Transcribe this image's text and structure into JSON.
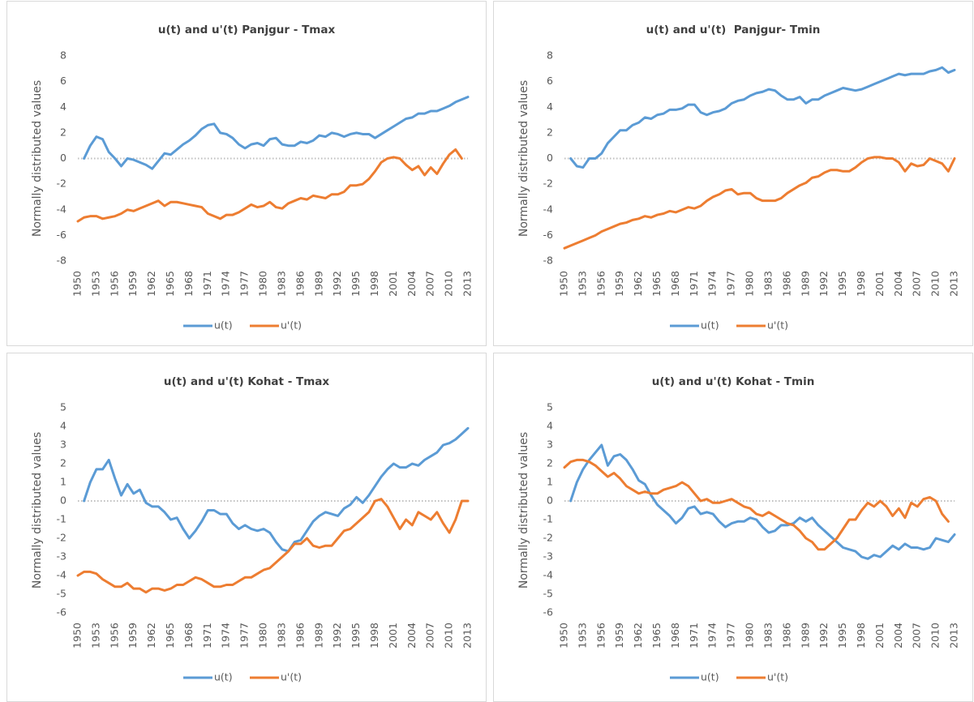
{
  "chart_data": [
    {
      "type": "line",
      "title": "u(t) and u'(t) Panjgur - Tmax",
      "y_label": "Normally distributed values",
      "x": [
        1950,
        1951,
        1952,
        1953,
        1954,
        1955,
        1956,
        1957,
        1958,
        1959,
        1960,
        1961,
        1962,
        1963,
        1964,
        1965,
        1966,
        1967,
        1968,
        1969,
        1970,
        1971,
        1972,
        1973,
        1974,
        1975,
        1976,
        1977,
        1978,
        1979,
        1980,
        1981,
        1982,
        1983,
        1984,
        1985,
        1986,
        1987,
        1988,
        1989,
        1990,
        1991,
        1992,
        1993,
        1994,
        1995,
        1996,
        1997,
        1998,
        1999,
        2000,
        2001,
        2002,
        2003,
        2004,
        2005,
        2006,
        2007,
        2008,
        2009,
        2010,
        2011,
        2012,
        2013
      ],
      "xlim": [
        1950,
        2013
      ],
      "xticks": [
        1950,
        1953,
        1956,
        1959,
        1962,
        1965,
        1968,
        1971,
        1974,
        1977,
        1980,
        1983,
        1986,
        1989,
        1992,
        1995,
        1998,
        2001,
        2004,
        2007,
        2010,
        2013
      ],
      "ylim": [
        -8,
        8
      ],
      "yticks": [
        -8,
        -6,
        -4,
        -2,
        0,
        2,
        4,
        6,
        8
      ],
      "legend": "bottom",
      "series": [
        {
          "name": "u(t)",
          "color": "#5b9bd5",
          "values": [
            null,
            0,
            1.0,
            1.7,
            1.5,
            0.5,
            0.0,
            -0.6,
            0.0,
            -0.1,
            -0.3,
            -0.5,
            -0.8,
            -0.2,
            0.4,
            0.3,
            0.7,
            1.1,
            1.4,
            1.8,
            2.3,
            2.6,
            2.7,
            2.0,
            1.9,
            1.6,
            1.1,
            0.8,
            1.1,
            1.2,
            1.0,
            1.5,
            1.6,
            1.1,
            1.0,
            1.0,
            1.3,
            1.2,
            1.4,
            1.8,
            1.7,
            2.0,
            1.9,
            1.7,
            1.9,
            2.0,
            1.9,
            1.9,
            1.6,
            1.9,
            2.2,
            2.5,
            2.8,
            3.1,
            3.2,
            3.5,
            3.5,
            3.7,
            3.7,
            3.9,
            4.1,
            4.4,
            4.6,
            4.8
          ]
        },
        {
          "name": "u'(t)",
          "color": "#ed7d31",
          "values": [
            -4.9,
            -4.6,
            -4.5,
            -4.5,
            -4.7,
            -4.6,
            -4.5,
            -4.3,
            -4.0,
            -4.1,
            -3.9,
            -3.7,
            -3.5,
            -3.3,
            -3.7,
            -3.4,
            -3.4,
            -3.5,
            -3.6,
            -3.7,
            -3.8,
            -4.3,
            -4.5,
            -4.7,
            -4.4,
            -4.4,
            -4.2,
            -3.9,
            -3.6,
            -3.8,
            -3.7,
            -3.4,
            -3.8,
            -3.9,
            -3.5,
            -3.3,
            -3.1,
            -3.2,
            -2.9,
            -3.0,
            -3.1,
            -2.8,
            -2.8,
            -2.6,
            -2.1,
            -2.1,
            -2.0,
            -1.6,
            -1.0,
            -0.3,
            0.0,
            0.1,
            0.0,
            -0.5,
            -0.9,
            -0.6,
            -1.3,
            -0.7,
            -1.2,
            -0.4,
            0.3,
            0.7,
            0.0,
            null
          ]
        }
      ]
    },
    {
      "type": "line",
      "title": "u(t) and u'(t)  Panjgur- Tmin",
      "y_label": "Normally distributed values",
      "x": [
        1950,
        1951,
        1952,
        1953,
        1954,
        1955,
        1956,
        1957,
        1958,
        1959,
        1960,
        1961,
        1962,
        1963,
        1964,
        1965,
        1966,
        1967,
        1968,
        1969,
        1970,
        1971,
        1972,
        1973,
        1974,
        1975,
        1976,
        1977,
        1978,
        1979,
        1980,
        1981,
        1982,
        1983,
        1984,
        1985,
        1986,
        1987,
        1988,
        1989,
        1990,
        1991,
        1992,
        1993,
        1994,
        1995,
        1996,
        1997,
        1998,
        1999,
        2000,
        2001,
        2002,
        2003,
        2004,
        2005,
        2006,
        2007,
        2008,
        2009,
        2010,
        2011,
        2012,
        2013
      ],
      "xlim": [
        1950,
        2013
      ],
      "xticks": [
        1950,
        1953,
        1956,
        1959,
        1962,
        1965,
        1968,
        1971,
        1974,
        1977,
        1980,
        1983,
        1986,
        1989,
        1992,
        1995,
        1998,
        2001,
        2004,
        2007,
        2010,
        2013
      ],
      "ylim": [
        -8,
        8
      ],
      "yticks": [
        -8,
        -6,
        -4,
        -2,
        0,
        2,
        4,
        6,
        8
      ],
      "legend": "bottom",
      "series": [
        {
          "name": "u(t)",
          "color": "#5b9bd5",
          "values": [
            null,
            0.0,
            -0.6,
            -0.7,
            0.0,
            0.0,
            0.4,
            1.2,
            1.7,
            2.2,
            2.2,
            2.6,
            2.8,
            3.2,
            3.1,
            3.4,
            3.5,
            3.8,
            3.8,
            3.9,
            4.2,
            4.2,
            3.6,
            3.4,
            3.6,
            3.7,
            3.9,
            4.3,
            4.5,
            4.6,
            4.9,
            5.1,
            5.2,
            5.4,
            5.3,
            4.9,
            4.6,
            4.6,
            4.8,
            4.3,
            4.6,
            4.6,
            4.9,
            5.1,
            5.3,
            5.5,
            5.4,
            5.3,
            5.4,
            5.6,
            5.8,
            6.0,
            6.2,
            6.4,
            6.6,
            6.5,
            6.6,
            6.6,
            6.6,
            6.8,
            6.9,
            7.1,
            6.7,
            6.9
          ]
        },
        {
          "name": "u'(t)",
          "color": "#ed7d31",
          "values": [
            -7.0,
            -6.8,
            -6.6,
            -6.4,
            -6.2,
            -6.0,
            -5.7,
            -5.5,
            -5.3,
            -5.1,
            -5.0,
            -4.8,
            -4.7,
            -4.5,
            -4.6,
            -4.4,
            -4.3,
            -4.1,
            -4.2,
            -4.0,
            -3.8,
            -3.9,
            -3.7,
            -3.3,
            -3.0,
            -2.8,
            -2.5,
            -2.4,
            -2.8,
            -2.7,
            -2.7,
            -3.1,
            -3.3,
            -3.3,
            -3.3,
            -3.1,
            -2.7,
            -2.4,
            -2.1,
            -1.9,
            -1.5,
            -1.4,
            -1.1,
            -0.9,
            -0.9,
            -1.0,
            -1.0,
            -0.7,
            -0.3,
            0.0,
            0.1,
            0.1,
            0.0,
            0.0,
            -0.3,
            -1.0,
            -0.4,
            -0.6,
            -0.5,
            0.0,
            -0.2,
            -0.4,
            -1.0,
            0.0
          ]
        }
      ]
    },
    {
      "type": "line",
      "title": "u(t) and u'(t) Kohat - Tmax",
      "y_label": "Normally distributed values",
      "x": [
        1950,
        1951,
        1952,
        1953,
        1954,
        1955,
        1956,
        1957,
        1958,
        1959,
        1960,
        1961,
        1962,
        1963,
        1964,
        1965,
        1966,
        1967,
        1968,
        1969,
        1970,
        1971,
        1972,
        1973,
        1974,
        1975,
        1976,
        1977,
        1978,
        1979,
        1980,
        1981,
        1982,
        1983,
        1984,
        1985,
        1986,
        1987,
        1988,
        1989,
        1990,
        1991,
        1992,
        1993,
        1994,
        1995,
        1996,
        1997,
        1998,
        1999,
        2000,
        2001,
        2002,
        2003,
        2004,
        2005,
        2006,
        2007,
        2008,
        2009,
        2010,
        2011,
        2012,
        2013
      ],
      "xlim": [
        1950,
        2013
      ],
      "xticks": [
        1950,
        1953,
        1956,
        1959,
        1962,
        1965,
        1968,
        1971,
        1974,
        1977,
        1980,
        1983,
        1986,
        1989,
        1992,
        1995,
        1998,
        2001,
        2004,
        2007,
        2010,
        2013
      ],
      "ylim": [
        -6,
        5
      ],
      "yticks": [
        -6,
        -5,
        -4,
        -3,
        -2,
        -1,
        0,
        1,
        2,
        3,
        4,
        5
      ],
      "legend": "bottom",
      "series": [
        {
          "name": "u(t)",
          "color": "#5b9bd5",
          "values": [
            null,
            0.0,
            1.0,
            1.7,
            1.7,
            2.2,
            1.2,
            0.3,
            0.9,
            0.4,
            0.6,
            -0.1,
            -0.3,
            -0.3,
            -0.6,
            -1.0,
            -0.9,
            -1.5,
            -2.0,
            -1.6,
            -1.1,
            -0.5,
            -0.5,
            -0.7,
            -0.7,
            -1.2,
            -1.5,
            -1.3,
            -1.5,
            -1.6,
            -1.5,
            -1.7,
            -2.2,
            -2.6,
            -2.7,
            -2.2,
            -2.1,
            -1.6,
            -1.1,
            -0.8,
            -0.6,
            -0.7,
            -0.8,
            -0.4,
            -0.2,
            0.2,
            -0.1,
            0.3,
            0.8,
            1.3,
            1.7,
            2.0,
            1.8,
            1.8,
            2.0,
            1.9,
            2.2,
            2.4,
            2.6,
            3.0,
            3.1,
            3.3,
            3.6,
            3.9
          ]
        },
        {
          "name": "u'(t)",
          "color": "#ed7d31",
          "values": [
            -4.0,
            -3.8,
            -3.8,
            -3.9,
            -4.2,
            -4.4,
            -4.6,
            -4.6,
            -4.4,
            -4.7,
            -4.7,
            -4.9,
            -4.7,
            -4.7,
            -4.8,
            -4.7,
            -4.5,
            -4.5,
            -4.3,
            -4.1,
            -4.2,
            -4.4,
            -4.6,
            -4.6,
            -4.5,
            -4.5,
            -4.3,
            -4.1,
            -4.1,
            -3.9,
            -3.7,
            -3.6,
            -3.3,
            -3.0,
            -2.7,
            -2.3,
            -2.3,
            -2.0,
            -2.4,
            -2.5,
            -2.4,
            -2.4,
            -2.0,
            -1.6,
            -1.5,
            -1.2,
            -0.9,
            -0.6,
            0.0,
            0.1,
            -0.3,
            -0.9,
            -1.5,
            -1.0,
            -1.3,
            -0.6,
            -0.8,
            -1.0,
            -0.6,
            -1.2,
            -1.7,
            -1.0,
            0.0,
            0.0
          ]
        }
      ]
    },
    {
      "type": "line",
      "title": "u(t) and u'(t) Kohat - Tmin",
      "y_label": "Normally distributed values",
      "x": [
        1950,
        1951,
        1952,
        1953,
        1954,
        1955,
        1956,
        1957,
        1958,
        1959,
        1960,
        1961,
        1962,
        1963,
        1964,
        1965,
        1966,
        1967,
        1968,
        1969,
        1970,
        1971,
        1972,
        1973,
        1974,
        1975,
        1976,
        1977,
        1978,
        1979,
        1980,
        1981,
        1982,
        1983,
        1984,
        1985,
        1986,
        1987,
        1988,
        1989,
        1990,
        1991,
        1992,
        1993,
        1994,
        1995,
        1996,
        1997,
        1998,
        1999,
        2000,
        2001,
        2002,
        2003,
        2004,
        2005,
        2006,
        2007,
        2008,
        2009,
        2010,
        2011,
        2012,
        2013
      ],
      "xlim": [
        1950,
        2013
      ],
      "xticks": [
        1950,
        1953,
        1956,
        1959,
        1962,
        1965,
        1968,
        1971,
        1974,
        1977,
        1980,
        1983,
        1986,
        1989,
        1992,
        1995,
        1998,
        2001,
        2004,
        2007,
        2010,
        2013
      ],
      "ylim": [
        -6,
        5
      ],
      "yticks": [
        -6,
        -5,
        -4,
        -3,
        -2,
        -1,
        0,
        1,
        2,
        3,
        4,
        5
      ],
      "legend": "bottom",
      "series": [
        {
          "name": "u(t)",
          "color": "#5b9bd5",
          "values": [
            null,
            0.0,
            1.0,
            1.7,
            2.2,
            2.6,
            3.0,
            1.9,
            2.4,
            2.5,
            2.2,
            1.7,
            1.1,
            0.9,
            0.3,
            -0.2,
            -0.5,
            -0.8,
            -1.2,
            -0.9,
            -0.4,
            -0.3,
            -0.7,
            -0.6,
            -0.7,
            -1.1,
            -1.4,
            -1.2,
            -1.1,
            -1.1,
            -0.9,
            -1.0,
            -1.4,
            -1.7,
            -1.6,
            -1.3,
            -1.3,
            -1.2,
            -0.9,
            -1.1,
            -0.9,
            -1.3,
            -1.6,
            -1.9,
            -2.2,
            -2.5,
            -2.6,
            -2.7,
            -3.0,
            -3.1,
            -2.9,
            -3.0,
            -2.7,
            -2.4,
            -2.6,
            -2.3,
            -2.5,
            -2.5,
            -2.6,
            -2.5,
            -2.0,
            -2.1,
            -2.2,
            -1.8
          ]
        },
        {
          "name": "u'(t)",
          "color": "#ed7d31",
          "values": [
            1.8,
            2.1,
            2.2,
            2.2,
            2.1,
            1.9,
            1.6,
            1.3,
            1.5,
            1.2,
            0.8,
            0.6,
            0.4,
            0.5,
            0.4,
            0.4,
            0.6,
            0.7,
            0.8,
            1.0,
            0.8,
            0.4,
            0.0,
            0.1,
            -0.1,
            -0.1,
            0.0,
            0.1,
            -0.1,
            -0.3,
            -0.4,
            -0.7,
            -0.8,
            -0.6,
            -0.8,
            -1.0,
            -1.2,
            -1.3,
            -1.6,
            -2.0,
            -2.2,
            -2.6,
            -2.6,
            -2.3,
            -2.0,
            -1.5,
            -1.0,
            -1.0,
            -0.5,
            -0.1,
            -0.3,
            0.0,
            -0.3,
            -0.8,
            -0.4,
            -0.9,
            -0.1,
            -0.3,
            0.1,
            0.2,
            0.0,
            -0.7,
            -1.1,
            null
          ]
        }
      ]
    }
  ]
}
